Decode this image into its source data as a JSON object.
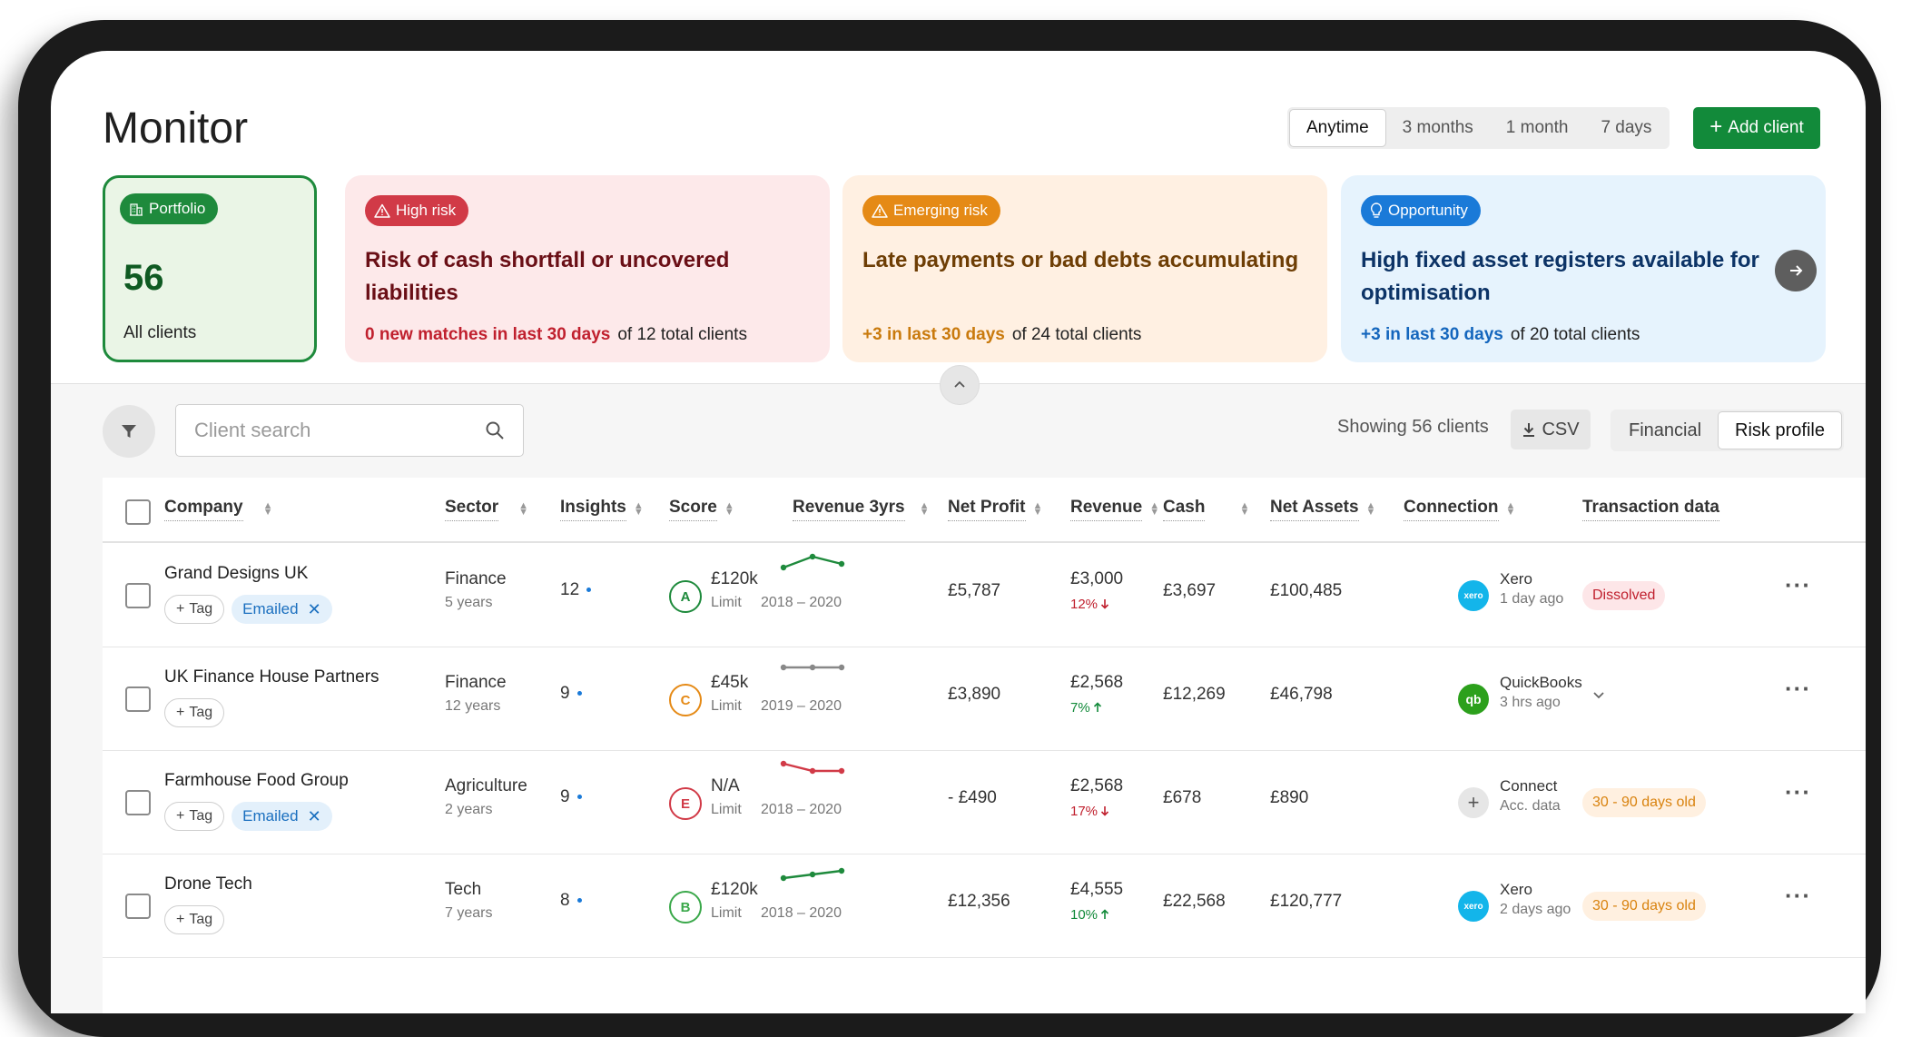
{
  "header": {
    "title": "Monitor"
  },
  "ranges": [
    {
      "label": "Anytime",
      "active": true
    },
    {
      "label": "3 months"
    },
    {
      "label": "1 month"
    },
    {
      "label": "7 days"
    }
  ],
  "add_client_label": "Add client",
  "cards": {
    "portfolio": {
      "badge": "Portfolio",
      "count": "56",
      "sub": "All clients"
    },
    "high": {
      "badge": "High risk",
      "headline": "Risk of cash shortfall or uncovered liabilities",
      "highlight": "0 new matches in last 30 days",
      "rest": "of 12 total clients"
    },
    "emerging": {
      "badge": "Emerging risk",
      "headline": "Late payments or bad debts accumulating",
      "highlight": "+3 in last 30 days",
      "rest": "of 24 total clients"
    },
    "opportunity": {
      "badge": "Opportunity",
      "headline": "High fixed asset registers available for optimisation",
      "highlight": "+3 in last 30 days",
      "rest": "of 20 total clients"
    }
  },
  "toolbar": {
    "search_placeholder": "Client search",
    "showing": "Showing 56 clients",
    "csv_label": "CSV",
    "views": [
      "Financial",
      "Risk profile"
    ],
    "active_view": "Risk profile"
  },
  "columns": [
    "Company",
    "Sector",
    "Insights",
    "Score",
    "Revenue 3yrs",
    "Net Profit",
    "Revenue",
    "Cash",
    "Net Assets",
    "Connection",
    "Transaction data"
  ],
  "tag_label": "Tag",
  "rows": [
    {
      "company": "Grand Designs UK",
      "emailed": "Emailed",
      "sector": "Finance",
      "sector_age": "5 years",
      "insights": "12",
      "score": "A",
      "score_color": "#1e8a3c",
      "limit": "£120k",
      "limit_label": "Limit",
      "years": "2018 – 2020",
      "trend": [
        2,
        5,
        3
      ],
      "trend_color": "#1e8a3c",
      "net_profit": "£5,787",
      "revenue": "£3,000",
      "rev_change": "12%",
      "rev_dir": "down",
      "cash": "£3,697",
      "net_assets": "£100,485",
      "conn_name": "Xero",
      "conn_time": "1 day ago",
      "conn_type": "xero",
      "status": "Dissolved",
      "status_type": "dissolved"
    },
    {
      "company": "UK Finance House Partners",
      "emailed": "",
      "sector": "Finance",
      "sector_age": "12 years",
      "insights": "9",
      "score": "C",
      "score_color": "#e58a16",
      "limit": "£45k",
      "limit_label": "Limit",
      "years": "2019 – 2020",
      "trend": [
        3,
        3,
        3
      ],
      "trend_color": "#888888",
      "net_profit": "£3,890",
      "revenue": "£2,568",
      "rev_change": "7%",
      "rev_dir": "up",
      "cash": "£12,269",
      "net_assets": "£46,798",
      "conn_name": "QuickBooks",
      "conn_time": "3 hrs ago",
      "conn_type": "qb",
      "status": "",
      "status_type": ""
    },
    {
      "company": "Farmhouse Food Group",
      "emailed": "Emailed",
      "sector": "Agriculture",
      "sector_age": "2 years",
      "insights": "9",
      "score": "E",
      "score_color": "#d13a47",
      "limit": "N/A",
      "limit_label": "Limit",
      "years": "2018 – 2020",
      "trend": [
        5,
        3,
        3
      ],
      "trend_color": "#d13a47",
      "net_profit": "- £490",
      "revenue": "£2,568",
      "rev_change": "17%",
      "rev_dir": "down",
      "cash": "£678",
      "net_assets": "£890",
      "conn_name": "Connect",
      "conn_time": "Acc. data",
      "conn_type": "connect",
      "status": "30 - 90 days old",
      "status_type": "late"
    },
    {
      "company": "Drone Tech",
      "emailed": "",
      "sector": "Tech",
      "sector_age": "7 years",
      "insights": "8",
      "score": "B",
      "score_color": "#3aa84a",
      "limit": "£120k",
      "limit_label": "Limit",
      "years": "2018 – 2020",
      "trend": [
        2,
        3,
        4
      ],
      "trend_color": "#1e8a3c",
      "net_profit": "£12,356",
      "revenue": "£4,555",
      "rev_change": "10%",
      "rev_dir": "up",
      "cash": "£22,568",
      "net_assets": "£120,777",
      "conn_name": "Xero",
      "conn_time": "2 days ago",
      "conn_type": "xero",
      "status": "30 - 90 days old",
      "status_type": "late"
    }
  ],
  "colors": {
    "primary": "#128a3a",
    "high_risk": "#d13a47",
    "emerging": "#e58a16",
    "opportunity": "#1a7ad8",
    "xero": "#13b5ea",
    "quickbooks": "#2ca01c"
  },
  "icons": {
    "filter": "filter-icon",
    "search": "search-icon",
    "download": "download-icon",
    "next": "arrow-right-icon",
    "collapse": "chevron-up-icon",
    "more": "more-horizontal-icon"
  }
}
